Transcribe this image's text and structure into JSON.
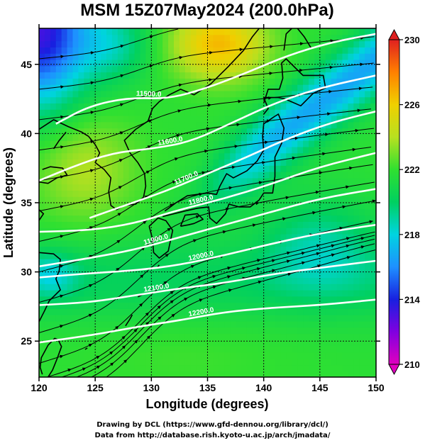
{
  "chart_data": {
    "type": "heatmap",
    "title": "MSM 15Z07May2024 (200.0hPa)",
    "xlabel": "Longitude (degrees)",
    "ylabel": "Latitude  (degrees)",
    "xlim": [
      120,
      150
    ],
    "ylim": [
      22.4,
      47.6
    ],
    "x_ticks": [
      120,
      125,
      130,
      135,
      140,
      145,
      150
    ],
    "y_ticks": [
      25,
      30,
      35,
      40,
      45
    ],
    "colorbar": {
      "range": [
        210,
        230
      ],
      "ticks": [
        210,
        214,
        218,
        222,
        226,
        230
      ],
      "colors": [
        "#e000c0",
        "#8000e0",
        "#1820e0",
        "#1e90ff",
        "#00d4e0",
        "#00d060",
        "#30e030",
        "#b8e020",
        "#f0d000",
        "#ff8000",
        "#e02020"
      ]
    },
    "contours": [
      {
        "label": "11500.0",
        "points": [
          [
            121.5,
            40.7
          ],
          [
            124.5,
            42.0
          ],
          [
            128.0,
            42.6
          ],
          [
            131.5,
            42.5
          ],
          [
            135.0,
            43.3
          ],
          [
            138.5,
            44.4
          ],
          [
            142.0,
            45.6
          ],
          [
            146.0,
            46.6
          ],
          [
            150.0,
            47.2
          ]
        ]
      },
      {
        "label": "11600.0",
        "points": [
          [
            120.0,
            36.6
          ],
          [
            123.0,
            37.6
          ],
          [
            126.5,
            38.6
          ],
          [
            130.0,
            38.9
          ],
          [
            133.5,
            39.4
          ],
          [
            137.5,
            40.9
          ],
          [
            141.0,
            42.2
          ],
          [
            145.0,
            43.3
          ],
          [
            150.0,
            44.2
          ]
        ]
      },
      {
        "label": "11700.0",
        "points": [
          [
            124.5,
            33.9
          ],
          [
            128.0,
            34.9
          ],
          [
            131.5,
            35.9
          ],
          [
            135.0,
            37.1
          ],
          [
            138.5,
            38.3
          ],
          [
            142.0,
            39.6
          ],
          [
            146.0,
            40.8
          ],
          [
            150.0,
            41.6
          ]
        ]
      },
      {
        "label": "11800.0",
        "points": [
          [
            120.0,
            32.9
          ],
          [
            124.5,
            33.0
          ],
          [
            128.5,
            33.5
          ],
          [
            132.5,
            34.5
          ],
          [
            136.5,
            35.3
          ],
          [
            140.5,
            36.3
          ],
          [
            145.0,
            37.6
          ],
          [
            150.0,
            38.6
          ]
        ]
      },
      {
        "label": "11900.0",
        "points": [
          [
            120.0,
            30.4
          ],
          [
            124.5,
            31.0
          ],
          [
            128.5,
            31.6
          ],
          [
            132.5,
            32.5
          ],
          [
            136.5,
            33.4
          ],
          [
            140.5,
            34.3
          ],
          [
            145.0,
            35.3
          ],
          [
            150.0,
            36.0
          ]
        ]
      },
      {
        "label": "12000.0",
        "points": [
          [
            120.0,
            29.6
          ],
          [
            124.5,
            29.9
          ],
          [
            128.5,
            30.1
          ],
          [
            132.5,
            30.5
          ],
          [
            136.5,
            31.2
          ],
          [
            140.5,
            32.0
          ],
          [
            145.0,
            32.8
          ],
          [
            150.0,
            33.4
          ]
        ]
      },
      {
        "label": "12100.0",
        "points": [
          [
            120.0,
            27.6
          ],
          [
            124.5,
            27.8
          ],
          [
            128.5,
            28.3
          ],
          [
            132.5,
            28.8
          ],
          [
            136.5,
            29.2
          ],
          [
            140.5,
            29.8
          ],
          [
            145.0,
            30.3
          ],
          [
            150.0,
            30.8
          ]
        ]
      },
      {
        "label": "12200.0",
        "points": [
          [
            120.0,
            24.9
          ],
          [
            124.5,
            25.4
          ],
          [
            128.5,
            26.0
          ],
          [
            132.5,
            26.5
          ],
          [
            136.5,
            27.1
          ],
          [
            140.5,
            27.4
          ],
          [
            145.0,
            27.6
          ],
          [
            150.0,
            28.0
          ]
        ]
      }
    ]
  },
  "credits": {
    "line1": "Drawing by DCL (https://www.gfd-dennou.org/library/dcl/)",
    "line2": "Data from http://database.rish.kyoto-u.ac.jp/arch/jmadata/"
  }
}
